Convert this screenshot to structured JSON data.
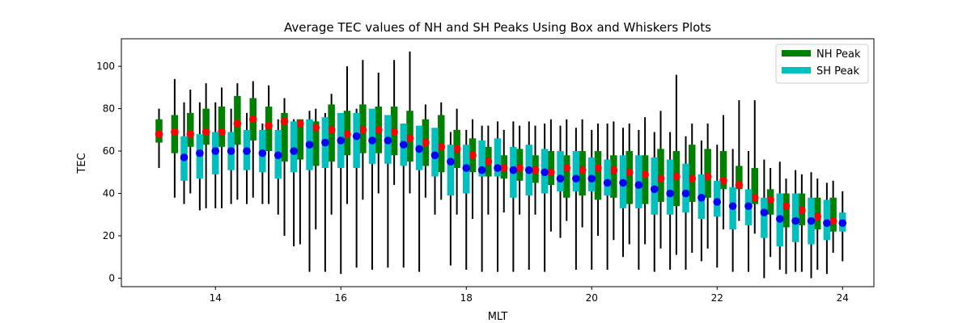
{
  "chart_data": {
    "type": "box",
    "title": "Average TEC values of NH and SH Peaks Using Box and Whiskers Plots",
    "xlabel": "MLT",
    "ylabel": "TEC",
    "xlim": [
      12.5,
      24.5
    ],
    "ylim": [
      -4,
      113
    ],
    "x_ticks": [
      14,
      16,
      18,
      20,
      22,
      24
    ],
    "y_ticks": [
      0,
      20,
      40,
      60,
      80,
      100
    ],
    "grid": false,
    "legend_position": "top-right",
    "series": [
      {
        "name": "NH Peak",
        "box_color": "#008000",
        "marker_color": "#ff0000",
        "x": [
          13.1,
          13.35,
          13.6,
          13.85,
          14.1,
          14.35,
          14.6,
          14.85,
          15.1,
          15.35,
          15.6,
          15.85,
          16.1,
          16.35,
          16.6,
          16.85,
          17.1,
          17.35,
          17.6,
          17.85,
          18.1,
          18.35,
          18.6,
          18.85,
          19.1,
          19.35,
          19.6,
          19.85,
          20.1,
          20.35,
          20.6,
          20.85,
          21.1,
          21.35,
          21.6,
          21.85,
          22.1,
          22.35,
          22.6,
          22.85,
          23.1,
          23.35,
          23.6,
          23.85
        ],
        "mean": [
          68,
          69,
          68,
          69,
          69,
          73,
          75,
          72,
          74,
          73,
          71,
          70,
          68,
          70,
          70,
          69,
          66,
          64,
          62,
          61,
          58,
          55,
          52,
          52,
          51,
          50,
          52,
          51,
          52,
          51,
          50,
          49,
          47,
          48,
          47,
          48,
          46,
          44,
          38,
          37,
          34,
          32,
          29,
          27
        ],
        "q1": [
          64,
          59,
          62,
          63,
          62,
          63,
          65,
          60,
          55,
          56,
          53,
          55,
          58,
          59,
          59,
          58,
          55,
          53,
          50,
          52,
          50,
          48,
          47,
          46,
          45,
          44,
          38,
          39,
          37,
          38,
          35,
          35,
          36,
          34,
          36,
          38,
          42,
          42,
          35,
          30,
          24,
          25,
          23,
          22
        ],
        "q3": [
          75,
          77,
          78,
          80,
          81,
          86,
          85,
          81,
          78,
          75,
          74,
          82,
          79,
          82,
          81,
          81,
          79,
          75,
          77,
          70,
          66,
          62,
          58,
          61,
          58,
          60,
          58,
          60,
          60,
          58,
          60,
          58,
          61,
          60,
          63,
          61,
          60,
          53,
          52,
          42,
          40,
          40,
          38,
          38
        ],
        "whisker_low": [
          52,
          38,
          40,
          33,
          33,
          37,
          38,
          35,
          20,
          16,
          23,
          30,
          35,
          37,
          40,
          44,
          40,
          38,
          37,
          30,
          28,
          30,
          31,
          30,
          30,
          22,
          27,
          24,
          20,
          18,
          16,
          16,
          14,
          11,
          12,
          14,
          23,
          27,
          21,
          10,
          2,
          3,
          4,
          12
        ],
        "whisker_high": [
          80,
          94,
          89,
          92,
          90,
          92,
          93,
          91,
          85,
          74,
          80,
          87,
          100,
          103,
          97,
          103,
          107,
          82,
          83,
          80,
          75,
          72,
          70,
          72,
          72,
          75,
          75,
          75,
          73,
          74,
          73,
          76,
          79,
          96,
          73,
          73,
          77,
          84,
          84,
          52,
          47,
          49,
          47,
          46
        ]
      },
      {
        "name": "SH Peak",
        "box_color": "#00bfbf",
        "marker_color": "#0000ff",
        "x": [
          13.5,
          13.75,
          14.0,
          14.25,
          14.5,
          14.75,
          15.0,
          15.25,
          15.5,
          15.75,
          16.0,
          16.25,
          16.5,
          16.75,
          17.0,
          17.25,
          17.5,
          17.75,
          18.0,
          18.25,
          18.5,
          18.75,
          19.0,
          19.25,
          19.5,
          19.75,
          20.0,
          20.25,
          20.5,
          20.75,
          21.0,
          21.25,
          21.5,
          21.75,
          22.0,
          22.25,
          22.5,
          22.75,
          23.0,
          23.25,
          23.5,
          23.75,
          24.0
        ],
        "mean": [
          57,
          59,
          60,
          60,
          60,
          59,
          58,
          60,
          63,
          64,
          65,
          67,
          65,
          65,
          63,
          61,
          58,
          55,
          52,
          51,
          52,
          51,
          51,
          50,
          47,
          47,
          47,
          45,
          45,
          44,
          42,
          40,
          40,
          38,
          36,
          34,
          34,
          31,
          28,
          27,
          27,
          26,
          26
        ],
        "q1": [
          46,
          47,
          49,
          51,
          51,
          50,
          47,
          50,
          51,
          52,
          52,
          52,
          54,
          54,
          53,
          51,
          48,
          39,
          40,
          48,
          48,
          38,
          39,
          40,
          41,
          41,
          41,
          39,
          33,
          33,
          30,
          30,
          31,
          28,
          29,
          23,
          25,
          19,
          15,
          17,
          16,
          18,
          22
        ],
        "q3": [
          67,
          68,
          69,
          69,
          70,
          70,
          70,
          74,
          75,
          76,
          78,
          78,
          80,
          77,
          73,
          72,
          71,
          63,
          63,
          65,
          66,
          62,
          63,
          61,
          60,
          60,
          57,
          56,
          58,
          58,
          57,
          56,
          54,
          49,
          46,
          43,
          42,
          38,
          40,
          40,
          38,
          37,
          31
        ],
        "whisker_low": [
          35,
          32,
          33,
          35,
          35,
          35,
          30,
          15,
          3,
          3,
          2,
          5,
          4,
          5,
          5,
          3,
          30,
          6,
          4,
          3,
          3,
          3,
          4,
          3,
          19,
          4,
          4,
          4,
          10,
          4,
          3,
          4,
          4,
          8,
          5,
          3,
          3,
          0,
          4,
          3,
          0,
          2,
          8
        ],
        "whisker_high": [
          83,
          83,
          83,
          80,
          78,
          73,
          75,
          75,
          79,
          78,
          77,
          80,
          77,
          73,
          72,
          70,
          69,
          69,
          70,
          72,
          74,
          74,
          74,
          73,
          72,
          71,
          70,
          73,
          71,
          70,
          69,
          69,
          67,
          65,
          63,
          61,
          60,
          56,
          55,
          51,
          50,
          45,
          41
        ]
      }
    ]
  }
}
